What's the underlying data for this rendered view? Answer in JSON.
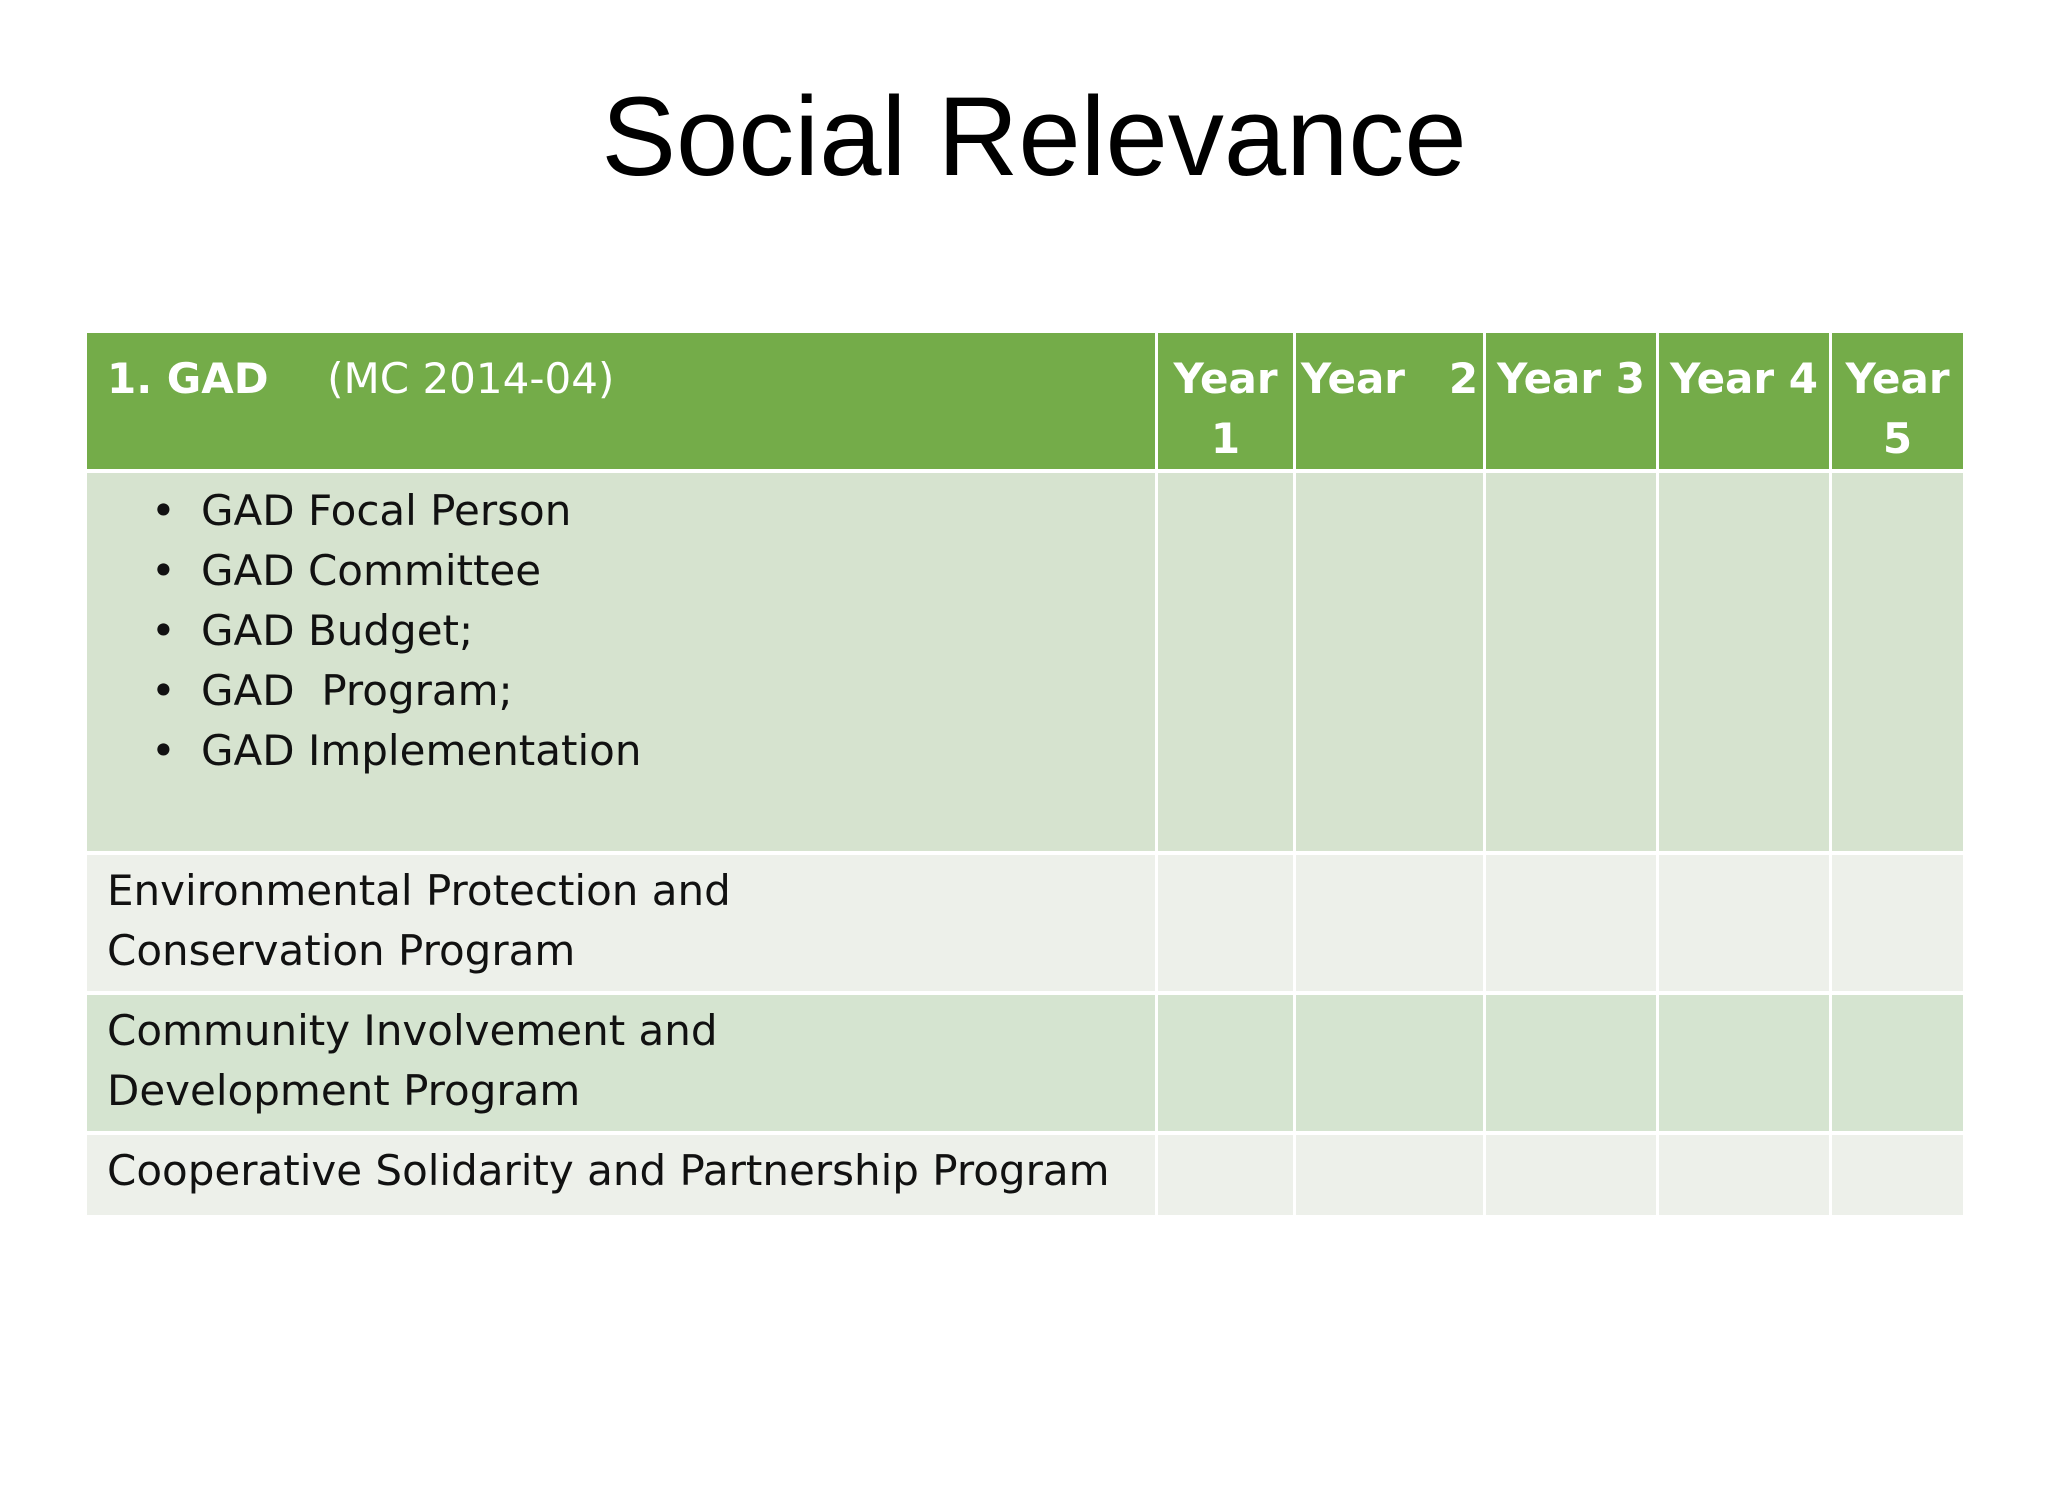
{
  "slide": {
    "title": "Social Relevance"
  },
  "table": {
    "header": {
      "label": "1.  GAD",
      "code": "(MC 2014-04)",
      "years": [
        "Year 1",
        "Year   2",
        "Year 3",
        "Year 4",
        "Year 5"
      ]
    },
    "gad_items": [
      "GAD Focal Person",
      "GAD Committee",
      "GAD Budget;",
      "GAD  Program;",
      "GAD Implementation"
    ],
    "bullet_glyph": "•",
    "programs": [
      "Environmental Protection and Conservation Program",
      "Community Involvement and Development Program",
      "Cooperative Solidarity and Partnership Program"
    ]
  },
  "colors": {
    "header_green": "#74ac49",
    "row_light_green": "#d6e3cf",
    "row_light_gray": "#edf0ea"
  }
}
